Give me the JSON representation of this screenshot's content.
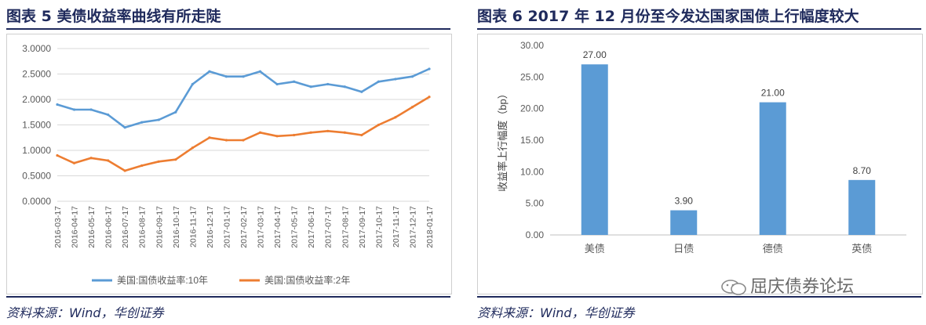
{
  "left": {
    "title": "图表  5  美债收益率曲线有所走陡",
    "source": "资料来源：Wind，华创证券"
  },
  "right": {
    "title": "图表  6 2017 年 12 月份至今发达国家国债上行幅度较大",
    "source": "资料来源：Wind，华创证券",
    "watermark": "屈庆债券论坛"
  },
  "colors": {
    "blue": "#5b9bd5",
    "orange": "#ed7d31",
    "title": "#1f2a5c",
    "bar": "#5b9bd5"
  },
  "chart_data": [
    {
      "type": "line",
      "title": "",
      "xlabel": "",
      "ylabel": "",
      "ylim": [
        0,
        3
      ],
      "yticks": [
        "0.0000",
        "0.5000",
        "1.0000",
        "1.5000",
        "2.0000",
        "2.5000",
        "3.0000"
      ],
      "x": [
        "2016-03-17",
        "2016-04-17",
        "2016-05-17",
        "2016-06-17",
        "2016-07-17",
        "2016-08-17",
        "2016-09-17",
        "2016-10-17",
        "2016-11-17",
        "2016-12-17",
        "2017-01-17",
        "2017-02-17",
        "2017-03-17",
        "2017-04-17",
        "2017-05-17",
        "2017-06-17",
        "2017-07-17",
        "2017-08-17",
        "2017-09-17",
        "2017-10-17",
        "2017-11-17",
        "2017-12-17",
        "2018-01-17"
      ],
      "grid": true,
      "legend": "bottom",
      "series": [
        {
          "name": "美国:国债收益率:10年",
          "color": "#5b9bd5",
          "values": [
            1.9,
            1.8,
            1.8,
            1.7,
            1.45,
            1.55,
            1.6,
            1.75,
            2.3,
            2.55,
            2.45,
            2.45,
            2.55,
            2.3,
            2.35,
            2.25,
            2.3,
            2.25,
            2.15,
            2.35,
            2.4,
            2.45,
            2.6
          ]
        },
        {
          "name": "美国:国债收益率:2年",
          "color": "#ed7d31",
          "values": [
            0.9,
            0.75,
            0.85,
            0.8,
            0.6,
            0.7,
            0.78,
            0.82,
            1.05,
            1.25,
            1.2,
            1.2,
            1.35,
            1.28,
            1.3,
            1.35,
            1.38,
            1.35,
            1.3,
            1.5,
            1.65,
            1.85,
            2.05
          ]
        }
      ]
    },
    {
      "type": "bar",
      "title": "",
      "xlabel": "",
      "ylabel": "收益率上行幅度（bp）",
      "ylim": [
        0,
        30
      ],
      "yticks": [
        "0.00",
        "5.00",
        "10.00",
        "15.00",
        "20.00",
        "25.00",
        "30.00"
      ],
      "categories": [
        "美债",
        "日债",
        "德债",
        "英债"
      ],
      "values": [
        27.0,
        3.9,
        21.0,
        8.7
      ],
      "labels": [
        "27.00",
        "3.90",
        "21.00",
        "8.70"
      ],
      "grid": false
    }
  ]
}
